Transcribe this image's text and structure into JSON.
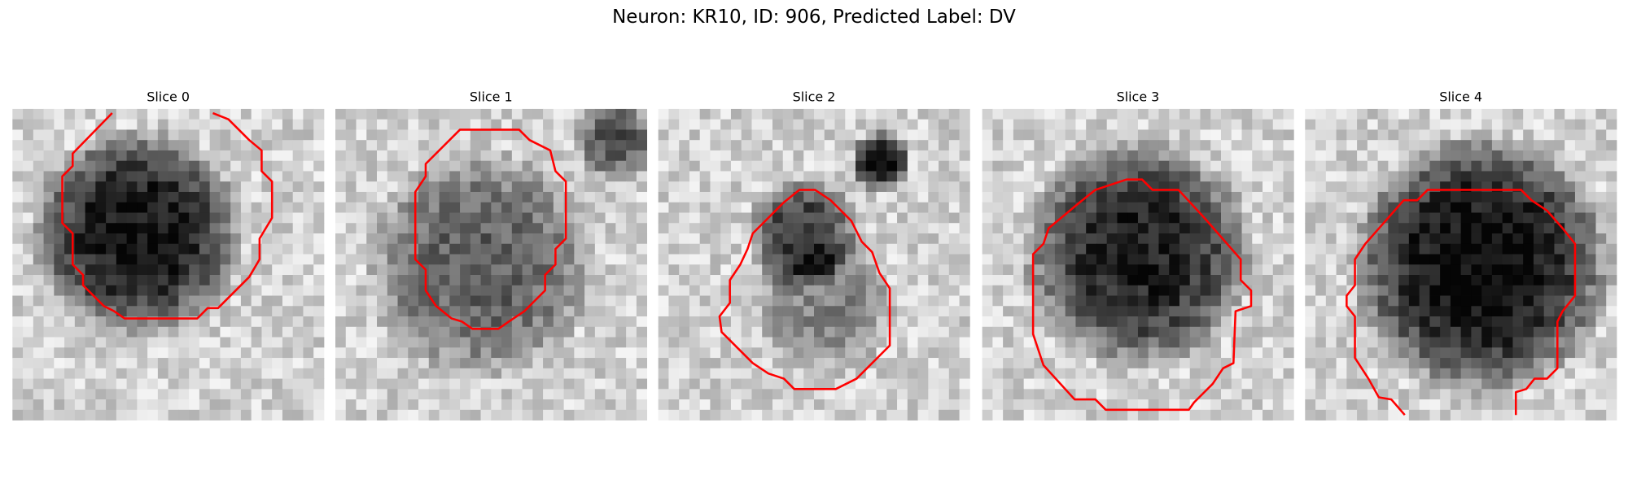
{
  "header": {
    "title": "Neuron: KR10, ID: 906, Predicted Label: DV"
  },
  "panels": [
    {
      "title": "Slice 0"
    },
    {
      "title": "Slice 1"
    },
    {
      "title": "Slice 2"
    },
    {
      "title": "Slice 3"
    },
    {
      "title": "Slice 4"
    }
  ]
}
